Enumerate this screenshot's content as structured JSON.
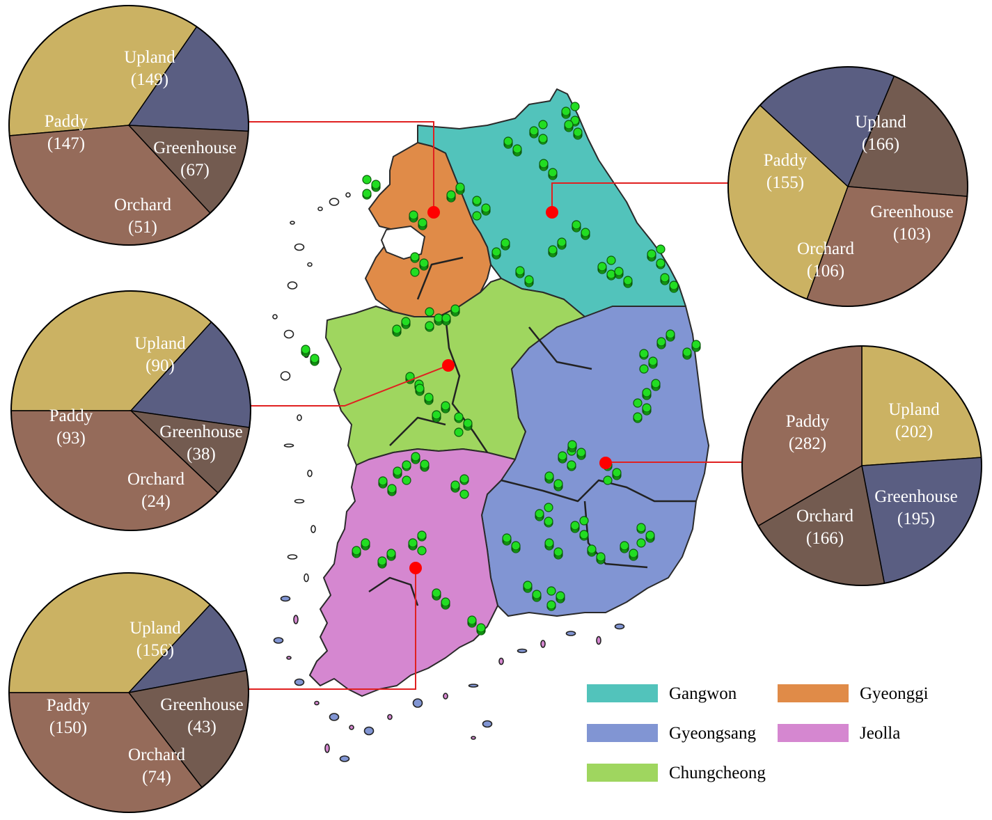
{
  "regions": [
    {
      "key": "gangwon",
      "name": "Gangwon",
      "color": "#52c3bb"
    },
    {
      "key": "gyeonggi",
      "name": "Gyeonggi",
      "color": "#e08b48"
    },
    {
      "key": "gyeongsang",
      "name": "Gyeongsang",
      "color": "#8195d3"
    },
    {
      "key": "jeolla",
      "name": "Jeolla",
      "color": "#d587d0"
    },
    {
      "key": "chungcheong",
      "name": "Chungcheong",
      "color": "#9fd65f"
    }
  ],
  "land_use_colors": {
    "Upland": "#cbb263",
    "Paddy": "#956b5a",
    "Greenhouse": "#5a5e82",
    "Orchard": "#735b50"
  },
  "site_colors": {
    "sample_point": "#22dd22",
    "region_marker": "#ff0000",
    "leader_line": "#e02020"
  },
  "chart_data": [
    {
      "type": "pie",
      "region": "Gyeonggi",
      "slices": [
        {
          "label": "Upland",
          "value": 149
        },
        {
          "label": "Greenhouse",
          "value": 67
        },
        {
          "label": "Orchard",
          "value": 51
        },
        {
          "label": "Paddy",
          "value": 147
        }
      ]
    },
    {
      "type": "pie",
      "region": "Gangwon",
      "slices": [
        {
          "label": "Upland",
          "value": 166
        },
        {
          "label": "Greenhouse",
          "value": 103
        },
        {
          "label": "Orchard",
          "value": 106
        },
        {
          "label": "Paddy",
          "value": 155
        }
      ]
    },
    {
      "type": "pie",
      "region": "Chungcheong",
      "slices": [
        {
          "label": "Upland",
          "value": 90
        },
        {
          "label": "Greenhouse",
          "value": 38
        },
        {
          "label": "Orchard",
          "value": 24
        },
        {
          "label": "Paddy",
          "value": 93
        }
      ]
    },
    {
      "type": "pie",
      "region": "Gyeongsang",
      "slices": [
        {
          "label": "Upland",
          "value": 202
        },
        {
          "label": "Greenhouse",
          "value": 195
        },
        {
          "label": "Orchard",
          "value": 166
        },
        {
          "label": "Paddy",
          "value": 282
        }
      ]
    },
    {
      "type": "pie",
      "region": "Jeolla",
      "slices": [
        {
          "label": "Upland",
          "value": 156
        },
        {
          "label": "Greenhouse",
          "value": 43
        },
        {
          "label": "Orchard",
          "value": 74
        },
        {
          "label": "Paddy",
          "value": 150
        }
      ]
    }
  ]
}
